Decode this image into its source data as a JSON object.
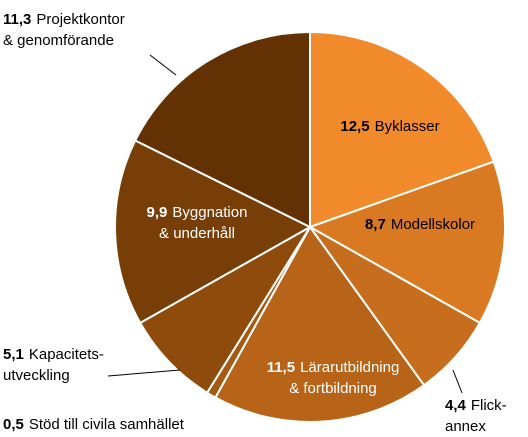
{
  "chart_data": {
    "type": "pie",
    "categories": [
      [
        "Byklasser"
      ],
      [
        "Modellskolor"
      ],
      [
        "Flick-",
        "annex"
      ],
      [
        "Lärarutbildning",
        "& fortbildning"
      ],
      [
        "Stöd till civila samhället"
      ],
      [
        "Kapacitets-",
        "utveckling"
      ],
      [
        "Byggnation",
        "& underhåll"
      ],
      [
        "Projektkontor",
        "& genomförande"
      ]
    ],
    "values": [
      12.5,
      8.7,
      4.4,
      11.5,
      0.5,
      5.1,
      9.9,
      11.3
    ],
    "value_labels": [
      "12,5",
      "8,7",
      "4,4",
      "11,5",
      "0,5",
      "5,1",
      "9,9",
      "11,3"
    ],
    "colors": [
      "#f08a2a",
      "#d97a22",
      "#c66d1e",
      "#b76418",
      "#a45a12",
      "#8e4b0c",
      "#773e07",
      "#633103"
    ]
  }
}
